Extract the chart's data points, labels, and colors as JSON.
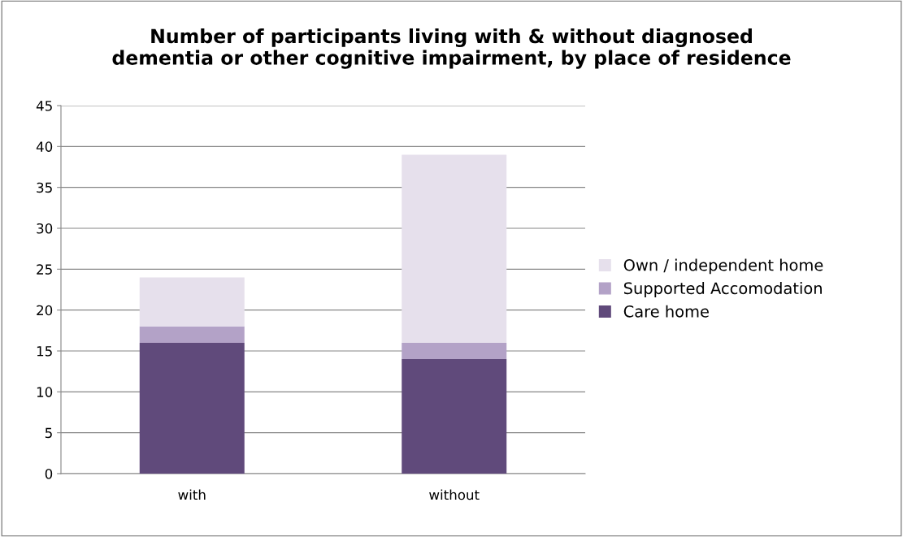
{
  "chart_data": {
    "type": "bar",
    "title": "Number of participants living with & without diagnosed\ndementia or other cognitive impairment, by place of residence",
    "categories": [
      "with",
      "without"
    ],
    "series": [
      {
        "name": "Care home",
        "color": "#604a7b",
        "values": [
          16,
          14
        ]
      },
      {
        "name": "Supported Accomodation",
        "color": "#b3a2c7",
        "values": [
          2,
          2
        ]
      },
      {
        "name": "Own / independent home",
        "color": "#e6e0ec",
        "values": [
          6,
          23
        ]
      }
    ],
    "stacked": true,
    "ylim": [
      0,
      45
    ],
    "yticks": [
      0,
      5,
      10,
      15,
      20,
      25,
      30,
      35,
      40,
      45
    ],
    "grid": "y",
    "legend": "right"
  }
}
